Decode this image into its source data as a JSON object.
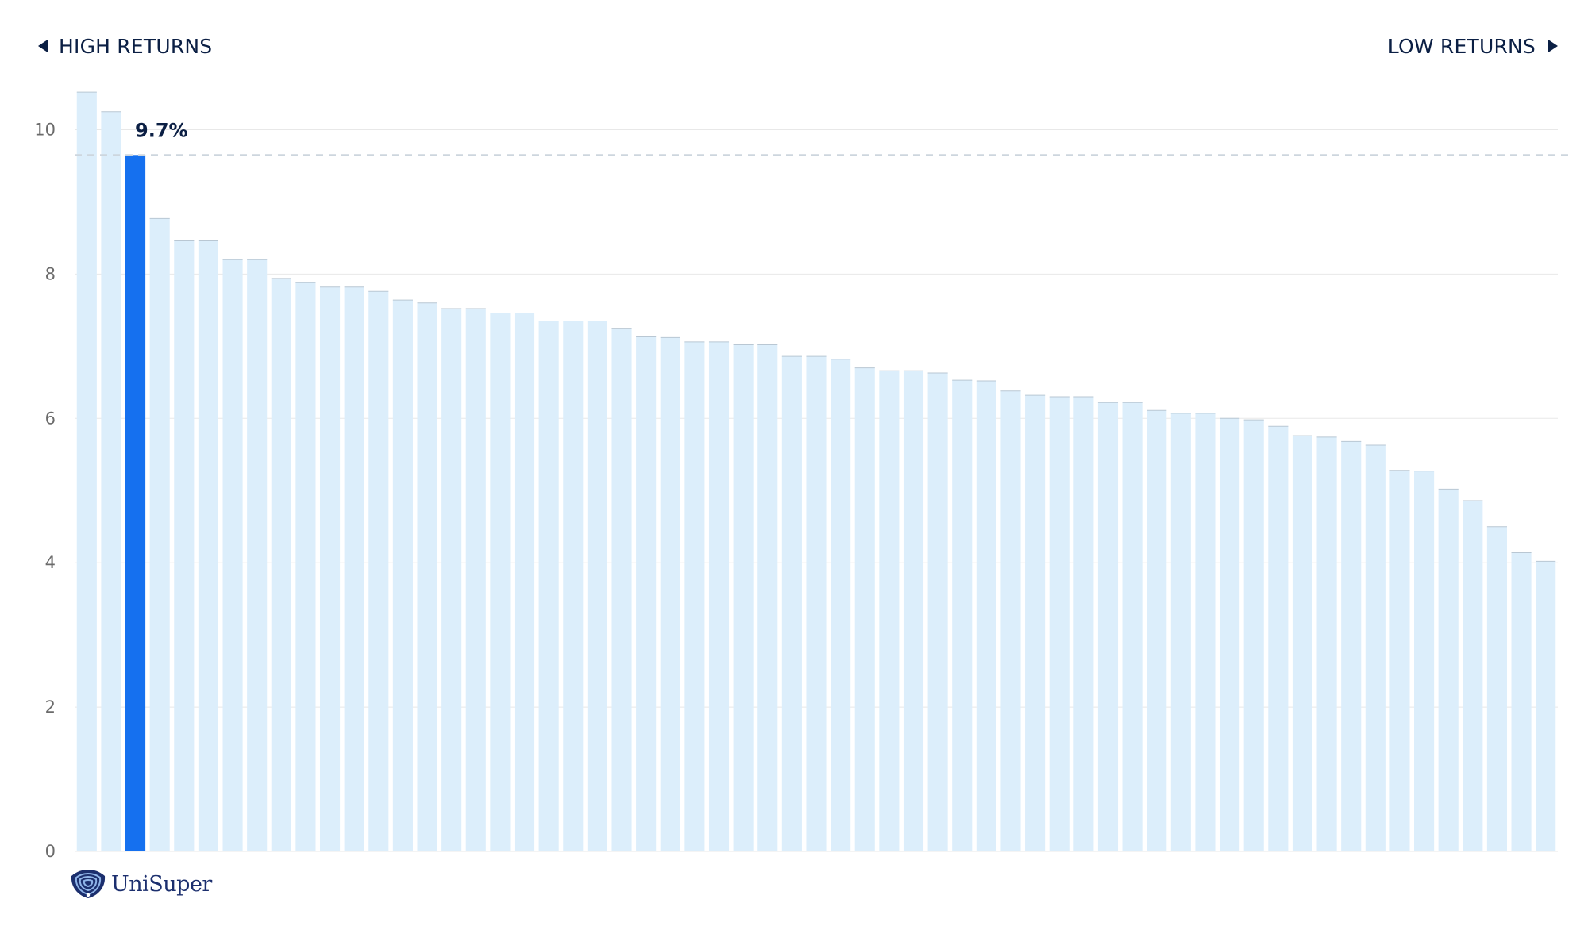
{
  "header": {
    "left_label": "HIGH RETURNS",
    "right_label": "LOW RETURNS"
  },
  "logo": {
    "name": "UniSuper",
    "icon": "unisuper-shell-icon"
  },
  "colors": {
    "highlight_bar": "#1570ef",
    "bar": "#dceefb",
    "text": "#0b1f44",
    "grid": "#e8e8e8",
    "reference_line": "#cdd6de"
  },
  "chart_data": {
    "type": "bar",
    "ylim": [
      0,
      10.5
    ],
    "yticks": [
      0,
      2,
      4,
      6,
      8,
      10
    ],
    "grid": true,
    "highlight_index": 2,
    "highlight_label": "9.7%",
    "reference_line_value": 9.65,
    "values": [
      10.52,
      10.25,
      9.65,
      8.77,
      8.46,
      8.46,
      8.2,
      8.2,
      7.94,
      7.88,
      7.82,
      7.82,
      7.76,
      7.64,
      7.6,
      7.52,
      7.52,
      7.46,
      7.46,
      7.35,
      7.35,
      7.35,
      7.25,
      7.13,
      7.12,
      7.06,
      7.06,
      7.02,
      7.02,
      6.86,
      6.86,
      6.82,
      6.7,
      6.66,
      6.66,
      6.63,
      6.53,
      6.52,
      6.38,
      6.32,
      6.3,
      6.3,
      6.22,
      6.22,
      6.11,
      6.07,
      6.07,
      6.0,
      5.98,
      5.89,
      5.76,
      5.74,
      5.68,
      5.63,
      5.28,
      5.27,
      5.02,
      4.86,
      4.5,
      4.14,
      4.02
    ]
  }
}
